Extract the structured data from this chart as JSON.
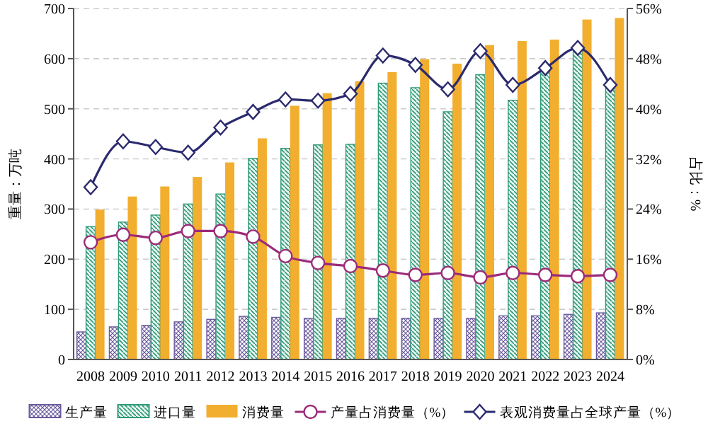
{
  "chart_data": {
    "type": "bar",
    "categories": [
      "2008",
      "2009",
      "2010",
      "2011",
      "2012",
      "2013",
      "2014",
      "2015",
      "2016",
      "2017",
      "2018",
      "2019",
      "2020",
      "2021",
      "2022",
      "2023",
      "2024"
    ],
    "ylabel": "重量：万吨",
    "y2label": "占比：%",
    "ylim": [
      0,
      700
    ],
    "yticks": [
      0,
      100,
      200,
      300,
      400,
      500,
      600,
      700
    ],
    "y2lim": [
      0,
      56
    ],
    "y2ticks": [
      {
        "value": 0,
        "label": "0%"
      },
      {
        "value": 8,
        "label": "8%"
      },
      {
        "value": 16,
        "label": "16%"
      },
      {
        "value": 24,
        "label": "24%"
      },
      {
        "value": 32,
        "label": "32%"
      },
      {
        "value": 40,
        "label": "40%"
      },
      {
        "value": 48,
        "label": "48%"
      },
      {
        "value": 56,
        "label": "56%"
      }
    ],
    "grid": "y",
    "legend": "bottom",
    "series": [
      {
        "name": "生产量",
        "color": "#6a5a9c",
        "values": [
          55,
          65,
          68,
          75,
          80,
          86,
          84,
          82,
          82,
          82,
          82,
          82,
          82,
          87,
          87,
          90,
          93
        ]
      },
      {
        "name": "进口量",
        "color": "#2e9a7a",
        "values": [
          265,
          274,
          288,
          310,
          330,
          401,
          421,
          428,
          429,
          551,
          542,
          494,
          568,
          517,
          579,
          620,
          548
        ]
      },
      {
        "name": "消费量",
        "color": "#f2ae2e",
        "values": [
          299,
          325,
          345,
          364,
          393,
          441,
          506,
          531,
          555,
          573,
          599,
          590,
          627,
          635,
          638,
          678,
          681
        ]
      },
      {
        "name": "产量占消费量（%）",
        "type": "line",
        "axis": "y2",
        "marker": "circle",
        "color": "#9c2a7a",
        "values": [
          18.7,
          19.9,
          19.4,
          20.5,
          20.5,
          19.6,
          16.5,
          15.4,
          14.9,
          14.2,
          13.5,
          13.8,
          13.1,
          13.8,
          13.5,
          13.3,
          13.5
        ]
      },
      {
        "name": "表观消费量占全球产量（%）",
        "type": "line",
        "axis": "y2",
        "marker": "diamond",
        "color": "#2b2a6e",
        "values": [
          27.5,
          34.8,
          33.9,
          33.0,
          37.0,
          39.5,
          41.5,
          41.3,
          42.4,
          48.5,
          47.0,
          43.1,
          49.2,
          43.8,
          46.5,
          49.7,
          43.8
        ]
      }
    ]
  }
}
